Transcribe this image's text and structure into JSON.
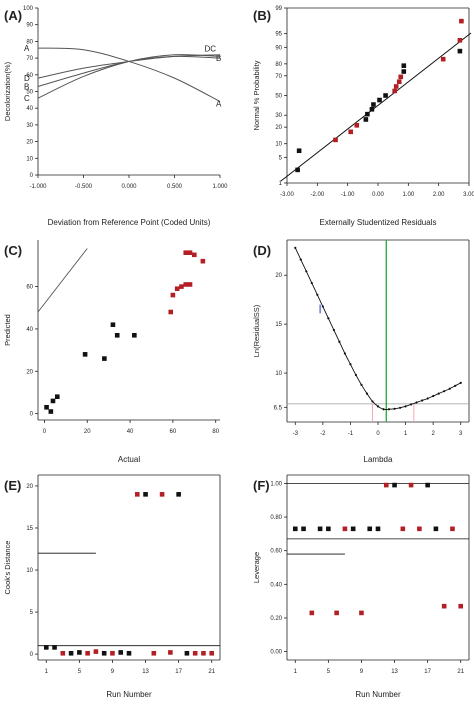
{
  "chart_data": [
    {
      "id": "A",
      "panel_label": "(A)",
      "type": "line",
      "xlabel": "Deviation from Reference Point (Coded Units)",
      "ylabel": "Decolorization(%)",
      "xlim": [
        -1,
        1
      ],
      "ylim": [
        0,
        100
      ],
      "xticks": [
        -1,
        -0.5,
        0,
        0.5,
        1
      ],
      "xtick_labels": [
        "-1.000",
        "-0.500",
        "0.000",
        "0.500",
        "1.000"
      ],
      "yticks": [
        0,
        10,
        20,
        30,
        40,
        50,
        60,
        70,
        80,
        90,
        100
      ],
      "ytick_labels": [
        "0",
        "10",
        "20",
        "30",
        "40",
        "50",
        "60",
        "70",
        "80",
        "90",
        "100"
      ],
      "series": [
        {
          "name": "A",
          "x": [
            -1,
            -0.5,
            0,
            0.5,
            1
          ],
          "y": [
            76,
            75,
            68,
            58,
            44
          ],
          "label_left": "A",
          "label_right": "A"
        },
        {
          "name": "B",
          "x": [
            -1,
            -0.5,
            0,
            0.5,
            1
          ],
          "y": [
            53,
            61,
            68,
            71,
            70
          ],
          "label_left": "B",
          "label_right": "B"
        },
        {
          "name": "C",
          "x": [
            -1,
            -0.5,
            0,
            0.5,
            1
          ],
          "y": [
            46,
            59,
            68,
            72,
            71
          ],
          "label_left": "C",
          "label_right": "C"
        },
        {
          "name": "D",
          "x": [
            -1,
            -0.5,
            0,
            0.5,
            1
          ],
          "y": [
            58,
            64,
            68,
            71,
            72
          ],
          "label_left": "D",
          "label_right": "D"
        }
      ],
      "right_cluster_label": "DC"
    },
    {
      "id": "B",
      "panel_label": "(B)",
      "type": "scatter",
      "xlabel": "Externally Studentized Residuals",
      "ylabel": "Normal % Probability",
      "xlim": [
        -3,
        3
      ],
      "ylim": [
        1,
        99
      ],
      "ylog_prob": true,
      "xticks": [
        -3,
        -2,
        -1,
        0,
        1,
        2,
        3
      ],
      "xtick_labels": [
        "-3.00",
        "-2.00",
        "-1.00",
        "0.00",
        "1.00",
        "2.00",
        "3.00"
      ],
      "yticks": [
        1,
        5,
        10,
        20,
        30,
        50,
        70,
        80,
        90,
        95,
        99
      ],
      "ytick_labels": [
        "1",
        "5",
        "10",
        "20",
        "30",
        "50",
        "70",
        "80",
        "90",
        "95",
        "99"
      ],
      "fit_line": {
        "x": [
          -3.2,
          3.2
        ],
        "y": [
          1,
          99
        ]
      },
      "points": [
        {
          "x": -2.65,
          "y": 2.4,
          "color": "black"
        },
        {
          "x": -2.6,
          "y": 7.1,
          "color": "black"
        },
        {
          "x": -1.4,
          "y": 11.9,
          "color": "red"
        },
        {
          "x": -0.9,
          "y": 16.7,
          "color": "red"
        },
        {
          "x": -0.7,
          "y": 21.4,
          "color": "red"
        },
        {
          "x": -0.4,
          "y": 26.2,
          "color": "black"
        },
        {
          "x": -0.35,
          "y": 31.0,
          "color": "black"
        },
        {
          "x": -0.2,
          "y": 35.7,
          "color": "black"
        },
        {
          "x": -0.15,
          "y": 40.5,
          "color": "black"
        },
        {
          "x": 0.05,
          "y": 45.2,
          "color": "black"
        },
        {
          "x": 0.25,
          "y": 50.0,
          "color": "black"
        },
        {
          "x": 0.55,
          "y": 54.8,
          "color": "red"
        },
        {
          "x": 0.6,
          "y": 59.5,
          "color": "red"
        },
        {
          "x": 0.7,
          "y": 64.3,
          "color": "red"
        },
        {
          "x": 0.75,
          "y": 69.0,
          "color": "red"
        },
        {
          "x": 0.85,
          "y": 73.8,
          "color": "black"
        },
        {
          "x": 0.85,
          "y": 78.6,
          "color": "black"
        },
        {
          "x": 2.15,
          "y": 83.3,
          "color": "red"
        },
        {
          "x": 2.7,
          "y": 88.1,
          "color": "black"
        },
        {
          "x": 2.7,
          "y": 92.9,
          "color": "red"
        },
        {
          "x": 2.75,
          "y": 97.6,
          "color": "red"
        }
      ]
    },
    {
      "id": "C",
      "panel_label": "(C)",
      "type": "scatter",
      "xlabel": "Actual",
      "ylabel": "Predicted",
      "xlim": [
        -3,
        82
      ],
      "ylim": [
        -3,
        82
      ],
      "xticks": [
        0,
        20,
        40,
        60,
        80
      ],
      "xtick_labels": [
        "0",
        "20",
        "40",
        "60",
        "80"
      ],
      "yticks": [
        0,
        20,
        40,
        60
      ],
      "ytick_labels": [
        "0",
        "20",
        "40",
        "60"
      ],
      "ref_line": {
        "x": [
          -3,
          20
        ],
        "y": [
          48,
          78
        ]
      },
      "points": [
        {
          "x": 1,
          "y": 3,
          "color": "black"
        },
        {
          "x": 3,
          "y": 1,
          "color": "black"
        },
        {
          "x": 4,
          "y": 6,
          "color": "black"
        },
        {
          "x": 6,
          "y": 8,
          "color": "black"
        },
        {
          "x": 19,
          "y": 28,
          "color": "black"
        },
        {
          "x": 28,
          "y": 26,
          "color": "black"
        },
        {
          "x": 32,
          "y": 42,
          "color": "black"
        },
        {
          "x": 34,
          "y": 37,
          "color": "black"
        },
        {
          "x": 42,
          "y": 37,
          "color": "black"
        },
        {
          "x": 59,
          "y": 48,
          "color": "red"
        },
        {
          "x": 60,
          "y": 56,
          "color": "red"
        },
        {
          "x": 62,
          "y": 59,
          "color": "red"
        },
        {
          "x": 64,
          "y": 60,
          "color": "red"
        },
        {
          "x": 66,
          "y": 61,
          "color": "red"
        },
        {
          "x": 68,
          "y": 61,
          "color": "red"
        },
        {
          "x": 66,
          "y": 76,
          "color": "red"
        },
        {
          "x": 68,
          "y": 76,
          "color": "red"
        },
        {
          "x": 70,
          "y": 75,
          "color": "red"
        },
        {
          "x": 74,
          "y": 72,
          "color": "red"
        }
      ]
    },
    {
      "id": "D",
      "panel_label": "(D)",
      "type": "line",
      "xlabel": "Lambda",
      "ylabel": "Ln(ResidualSS)",
      "xlim": [
        -3.3,
        3.3
      ],
      "ylim": [
        5,
        23.6
      ],
      "xticks": [
        -3,
        -2,
        -1,
        0,
        1,
        2,
        3
      ],
      "xtick_labels": [
        "-3",
        "-2",
        "-1",
        "0",
        "1",
        "2",
        "3"
      ],
      "yticks": [
        6.5,
        10,
        15,
        20
      ],
      "ytick_labels": [
        "6.5",
        "10",
        "15",
        "20"
      ],
      "best_lambda": 0.3,
      "ci_lower": -0.2,
      "ci_upper": 1.3,
      "threshold": 6.85,
      "curve": {
        "x": [
          -3.0,
          -2.8,
          -2.6,
          -2.4,
          -2.2,
          -2.0,
          -1.8,
          -1.6,
          -1.4,
          -1.2,
          -1.0,
          -0.8,
          -0.6,
          -0.4,
          -0.2,
          0.0,
          0.2,
          0.4,
          0.6,
          0.8,
          1.0,
          1.2,
          1.4,
          1.6,
          1.8,
          2.0,
          2.2,
          2.4,
          2.6,
          2.8,
          3.0
        ],
        "y": [
          22.8,
          21.6,
          20.4,
          19.2,
          18.0,
          16.8,
          15.6,
          14.4,
          13.2,
          12.0,
          10.9,
          9.8,
          8.8,
          7.9,
          7.1,
          6.6,
          6.3,
          6.3,
          6.35,
          6.45,
          6.6,
          6.8,
          7.0,
          7.2,
          7.4,
          7.65,
          7.9,
          8.15,
          8.4,
          8.7,
          9.0
        ]
      }
    },
    {
      "id": "E",
      "panel_label": "(E)",
      "type": "scatter",
      "xlabel": "Run Number",
      "ylabel": "Cook's Distance",
      "xlim": [
        0,
        22
      ],
      "ylim": [
        -0.7,
        21.3
      ],
      "xticks": [
        1,
        5,
        9,
        13,
        17,
        21
      ],
      "xtick_labels": [
        "1",
        "5",
        "9",
        "13",
        "17",
        "21"
      ],
      "yticks": [
        0,
        5,
        10,
        15,
        20
      ],
      "ytick_labels": [
        "0",
        "5",
        "10",
        "15",
        "20"
      ],
      "ref_line_high": {
        "y": 12,
        "x": [
          0,
          7
        ]
      },
      "ref_line_low": {
        "y": 1
      },
      "points": [
        {
          "x": 1,
          "y": 0.8,
          "color": "black"
        },
        {
          "x": 2,
          "y": 0.8,
          "color": "black"
        },
        {
          "x": 3,
          "y": 0.1,
          "color": "red"
        },
        {
          "x": 4,
          "y": 0.1,
          "color": "black"
        },
        {
          "x": 5,
          "y": 0.2,
          "color": "black"
        },
        {
          "x": 6,
          "y": 0.1,
          "color": "red"
        },
        {
          "x": 7,
          "y": 0.3,
          "color": "red"
        },
        {
          "x": 8,
          "y": 0.1,
          "color": "black"
        },
        {
          "x": 9,
          "y": 0.1,
          "color": "red"
        },
        {
          "x": 10,
          "y": 0.2,
          "color": "black"
        },
        {
          "x": 11,
          "y": 0.1,
          "color": "black"
        },
        {
          "x": 12,
          "y": 19,
          "color": "red"
        },
        {
          "x": 13,
          "y": 19,
          "color": "black"
        },
        {
          "x": 14,
          "y": 0.1,
          "color": "red"
        },
        {
          "x": 15,
          "y": 19,
          "color": "red"
        },
        {
          "x": 16,
          "y": 0.2,
          "color": "red"
        },
        {
          "x": 17,
          "y": 19,
          "color": "black"
        },
        {
          "x": 18,
          "y": 0.1,
          "color": "black"
        },
        {
          "x": 19,
          "y": 0.1,
          "color": "red"
        },
        {
          "x": 20,
          "y": 0.1,
          "color": "red"
        },
        {
          "x": 21,
          "y": 0.1,
          "color": "red"
        }
      ]
    },
    {
      "id": "F",
      "panel_label": "(F)",
      "type": "scatter",
      "xlabel": "Run Number",
      "ylabel": "Leverage",
      "xlim": [
        0,
        22
      ],
      "ylim": [
        -0.05,
        1.05
      ],
      "xticks": [
        1,
        5,
        9,
        13,
        17,
        21
      ],
      "xtick_labels": [
        "1",
        "5",
        "9",
        "13",
        "17",
        "21"
      ],
      "yticks": [
        0,
        0.2,
        0.4,
        0.6,
        0.8,
        1.0
      ],
      "ytick_labels": [
        "0.00",
        "0.20",
        "0.40",
        "0.60",
        "0.80",
        "1.00"
      ],
      "ref_line_full": {
        "y": 0.67
      },
      "ref_line_partial": {
        "y": 0.58,
        "x": [
          0,
          7
        ]
      },
      "ref_line_top": {
        "y": 1.0
      },
      "points": [
        {
          "x": 1,
          "y": 0.73,
          "color": "black"
        },
        {
          "x": 2,
          "y": 0.73,
          "color": "black"
        },
        {
          "x": 3,
          "y": 0.23,
          "color": "red"
        },
        {
          "x": 4,
          "y": 0.73,
          "color": "black"
        },
        {
          "x": 5,
          "y": 0.73,
          "color": "black"
        },
        {
          "x": 6,
          "y": 0.23,
          "color": "red"
        },
        {
          "x": 7,
          "y": 0.73,
          "color": "red"
        },
        {
          "x": 8,
          "y": 0.73,
          "color": "black"
        },
        {
          "x": 9,
          "y": 0.23,
          "color": "red"
        },
        {
          "x": 10,
          "y": 0.73,
          "color": "black"
        },
        {
          "x": 11,
          "y": 0.73,
          "color": "black"
        },
        {
          "x": 12,
          "y": 0.99,
          "color": "red"
        },
        {
          "x": 13,
          "y": 0.99,
          "color": "black"
        },
        {
          "x": 14,
          "y": 0.73,
          "color": "red"
        },
        {
          "x": 15,
          "y": 0.99,
          "color": "red"
        },
        {
          "x": 16,
          "y": 0.73,
          "color": "red"
        },
        {
          "x": 17,
          "y": 0.99,
          "color": "black"
        },
        {
          "x": 18,
          "y": 0.73,
          "color": "black"
        },
        {
          "x": 19,
          "y": 0.27,
          "color": "red"
        },
        {
          "x": 20,
          "y": 0.73,
          "color": "red"
        },
        {
          "x": 21,
          "y": 0.27,
          "color": "red"
        }
      ]
    }
  ],
  "colors": {
    "red": "#b21f24",
    "black": "#111111",
    "axis": "#222222",
    "line": "#555555",
    "green": "#22aa33",
    "pink": "#f2a0a8",
    "blue": "#2233cc"
  }
}
